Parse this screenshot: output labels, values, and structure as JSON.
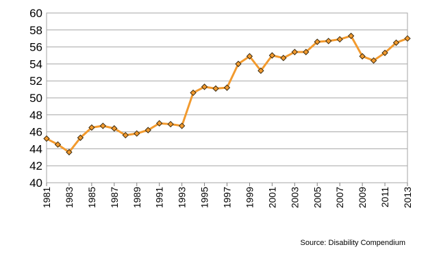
{
  "chart_data": {
    "type": "line",
    "source": "Source: Disability Compendium",
    "x": [
      1981,
      1982,
      1983,
      1984,
      1985,
      1986,
      1987,
      1988,
      1989,
      1990,
      1991,
      1992,
      1993,
      1994,
      1995,
      1996,
      1997,
      1998,
      1999,
      2000,
      2001,
      2002,
      2003,
      2004,
      2005,
      2006,
      2007,
      2008,
      2009,
      2010,
      2011,
      2012,
      2013
    ],
    "values": [
      45.2,
      44.5,
      43.6,
      45.3,
      46.5,
      46.7,
      46.4,
      45.6,
      45.8,
      46.2,
      47.0,
      46.9,
      46.7,
      50.6,
      51.3,
      51.1,
      51.2,
      54.0,
      54.9,
      53.2,
      55.0,
      54.7,
      55.4,
      55.4,
      56.6,
      56.7,
      56.9,
      57.3,
      54.9,
      54.4,
      55.3,
      56.5,
      57.0
    ],
    "color": "#f29a2e",
    "xlim": [
      1981,
      2013
    ],
    "xticks": [
      1981,
      1983,
      1985,
      1987,
      1989,
      1991,
      1993,
      1995,
      1997,
      1999,
      2001,
      2003,
      2005,
      2007,
      2009,
      2011,
      2013
    ],
    "ylim": [
      40,
      60
    ],
    "yticks": [
      40,
      42,
      44,
      46,
      48,
      50,
      52,
      54,
      56,
      58,
      60
    ],
    "grid": true
  }
}
